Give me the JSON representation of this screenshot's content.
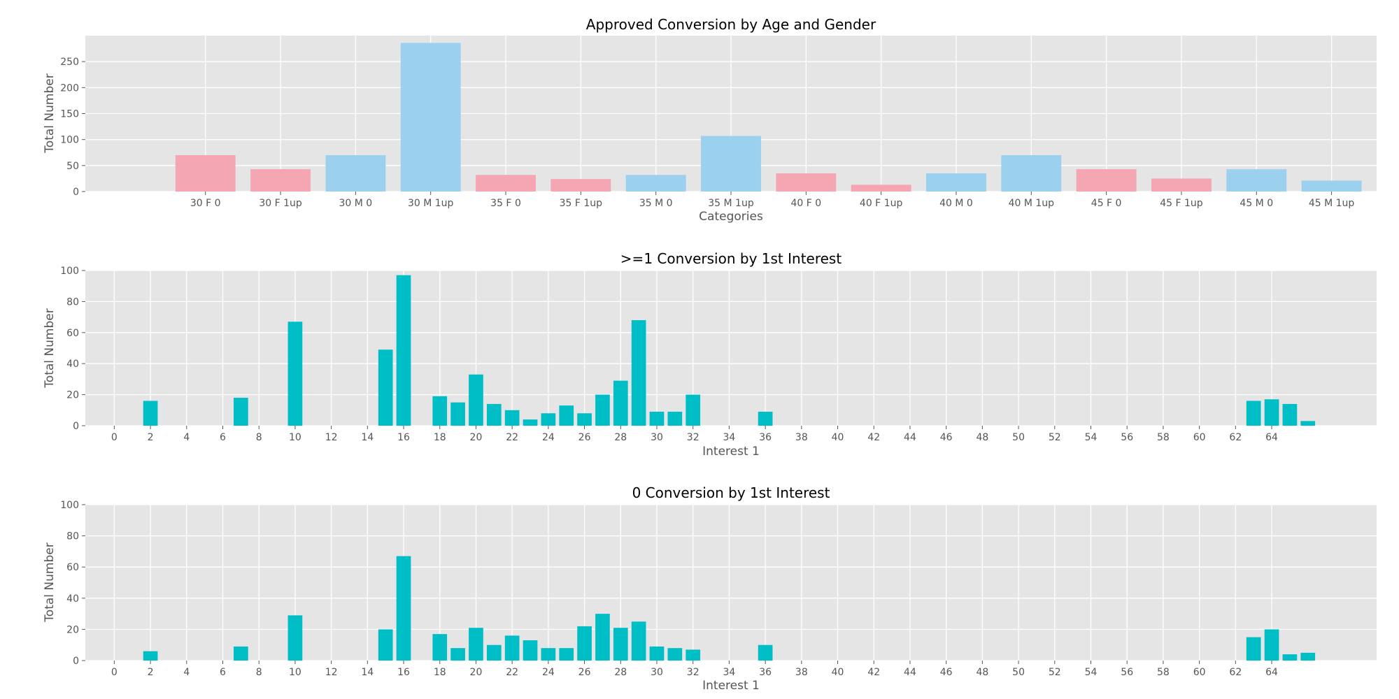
{
  "chart_data": [
    {
      "type": "bar",
      "title": "Approved Conversion by Age and Gender",
      "xlabel": "Categories",
      "ylabel": "Total Number",
      "categories": [
        "30 F 0",
        "30 F 1up",
        "30 M 0",
        "30 M 1up",
        "35 F 0",
        "35 F 1up",
        "35 M 0",
        "35 M 1up",
        "40 F 0",
        "40 F 1up",
        "40 M 0",
        "40 M 1up",
        "45 F 0",
        "45 F 1up",
        "45 M 0",
        "45 M 1up"
      ],
      "values": [
        70,
        43,
        70,
        286,
        32,
        24,
        32,
        107,
        35,
        13,
        35,
        70,
        43,
        25,
        43,
        21
      ],
      "bar_colors": [
        "#f4a6b2",
        "#f4a6b2",
        "#9bd1ee",
        "#9bd1ee",
        "#f4a6b2",
        "#f4a6b2",
        "#9bd1ee",
        "#9bd1ee",
        "#f4a6b2",
        "#f4a6b2",
        "#9bd1ee",
        "#9bd1ee",
        "#f4a6b2",
        "#f4a6b2",
        "#9bd1ee",
        "#9bd1ee"
      ],
      "ylim": [
        0,
        300
      ],
      "yticks": [
        0,
        50,
        100,
        150,
        200,
        250
      ],
      "grid": true
    },
    {
      "type": "bar",
      "title": ">=1 Conversion by 1st Interest",
      "xlabel": "Interest 1",
      "ylabel": "Total Number",
      "x": [
        2,
        7,
        10,
        15,
        16,
        18,
        19,
        20,
        21,
        22,
        23,
        24,
        25,
        26,
        27,
        28,
        29,
        30,
        31,
        32,
        36,
        63,
        64,
        65,
        66
      ],
      "values": [
        16,
        18,
        67,
        49,
        97,
        19,
        15,
        33,
        14,
        10,
        4,
        8,
        13,
        8,
        20,
        29,
        68,
        9,
        9,
        20,
        9,
        16,
        17,
        14,
        3
      ],
      "bar_color": "#00bec5",
      "xlim": [
        -1.6,
        69.8
      ],
      "xticks": [
        0,
        2,
        4,
        6,
        8,
        10,
        12,
        14,
        16,
        18,
        20,
        22,
        24,
        26,
        28,
        30,
        32,
        34,
        36,
        38,
        40,
        42,
        44,
        46,
        48,
        50,
        52,
        54,
        56,
        58,
        60,
        62,
        64
      ],
      "ylim": [
        0,
        100
      ],
      "yticks": [
        0,
        20,
        40,
        60,
        80,
        100
      ],
      "grid": true
    },
    {
      "type": "bar",
      "title": "0 Conversion by 1st Interest",
      "xlabel": "Interest 1",
      "ylabel": "Total Number",
      "x": [
        2,
        7,
        10,
        15,
        16,
        18,
        19,
        20,
        21,
        22,
        23,
        24,
        25,
        26,
        27,
        28,
        29,
        30,
        31,
        32,
        36,
        63,
        64,
        65,
        66
      ],
      "values": [
        6,
        9,
        29,
        20,
        67,
        17,
        8,
        21,
        10,
        16,
        13,
        8,
        8,
        22,
        30,
        21,
        25,
        9,
        8,
        7,
        10,
        15,
        20,
        4,
        5
      ],
      "bar_color": "#00bec5",
      "xlim": [
        -1.6,
        69.8
      ],
      "xticks": [
        0,
        2,
        4,
        6,
        8,
        10,
        12,
        14,
        16,
        18,
        20,
        22,
        24,
        26,
        28,
        30,
        32,
        34,
        36,
        38,
        40,
        42,
        44,
        46,
        48,
        50,
        52,
        54,
        56,
        58,
        60,
        62,
        64
      ],
      "ylim": [
        0,
        100
      ],
      "yticks": [
        0,
        20,
        40,
        60,
        80,
        100
      ],
      "grid": true
    }
  ]
}
